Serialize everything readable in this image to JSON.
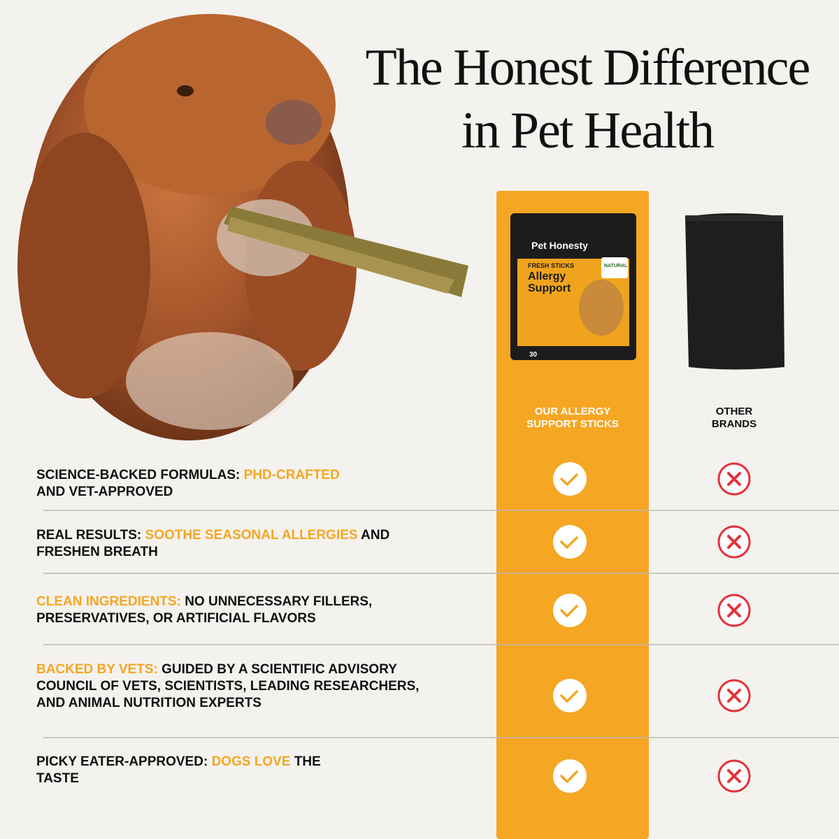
{
  "title": {
    "lines": [
      "The Honest Difference",
      "in Pet Health"
    ]
  },
  "product": {
    "brand": "Pet Honesty",
    "line": "FRESH STICKS",
    "name_lines": [
      "Allergy",
      "Support"
    ],
    "badge": "NATURAL",
    "count": "30"
  },
  "columns": {
    "ours": [
      "OUR ALLERGY",
      "SUPPORT STICKS"
    ],
    "others": [
      "OTHER",
      "BRANDS"
    ]
  },
  "rows": [
    {
      "lines": [
        [
          {
            "text": "SCIENCE-BACKED FORMULAS:"
          },
          {
            "text": "PHD-CRAFTED",
            "accent": true
          }
        ],
        [
          {
            "text": "AND VET-APPROVED"
          }
        ]
      ]
    },
    {
      "lines": [
        [
          {
            "text": "REAL RESULTS:"
          },
          {
            "text": "SOOTHE SEASONAL ALLERGIES",
            "accent": true
          },
          {
            "text": "AND"
          }
        ],
        [
          {
            "text": "FRESHEN BREATH"
          }
        ]
      ]
    },
    {
      "lines": [
        [
          {
            "text": "CLEAN INGREDIENTS:",
            "accent": true
          },
          {
            "text": "NO UNNECESSARY FILLERS,"
          }
        ],
        [
          {
            "text": "PRESERVATIVES, OR ARTIFICIAL FLAVORS"
          }
        ]
      ]
    },
    {
      "lines": [
        [
          {
            "text": "BACKED BY VETS:",
            "accent": true
          },
          {
            "text": "GUIDED BY A SCIENTIFIC ADVISORY"
          }
        ],
        [
          {
            "text": "COUNCIL OF VETS, SCIENTISTS, LEADING RESEARCHERS,"
          }
        ],
        [
          {
            "text": "AND ANIMAL NUTRITION EXPERTS"
          }
        ]
      ]
    },
    {
      "lines": [
        [
          {
            "text": "PICKY EATER-APPROVED:"
          },
          {
            "text": "DOGS LOVE",
            "accent": true
          },
          {
            "text": "THE"
          }
        ],
        [
          {
            "text": "TASTE"
          }
        ]
      ]
    }
  ]
}
